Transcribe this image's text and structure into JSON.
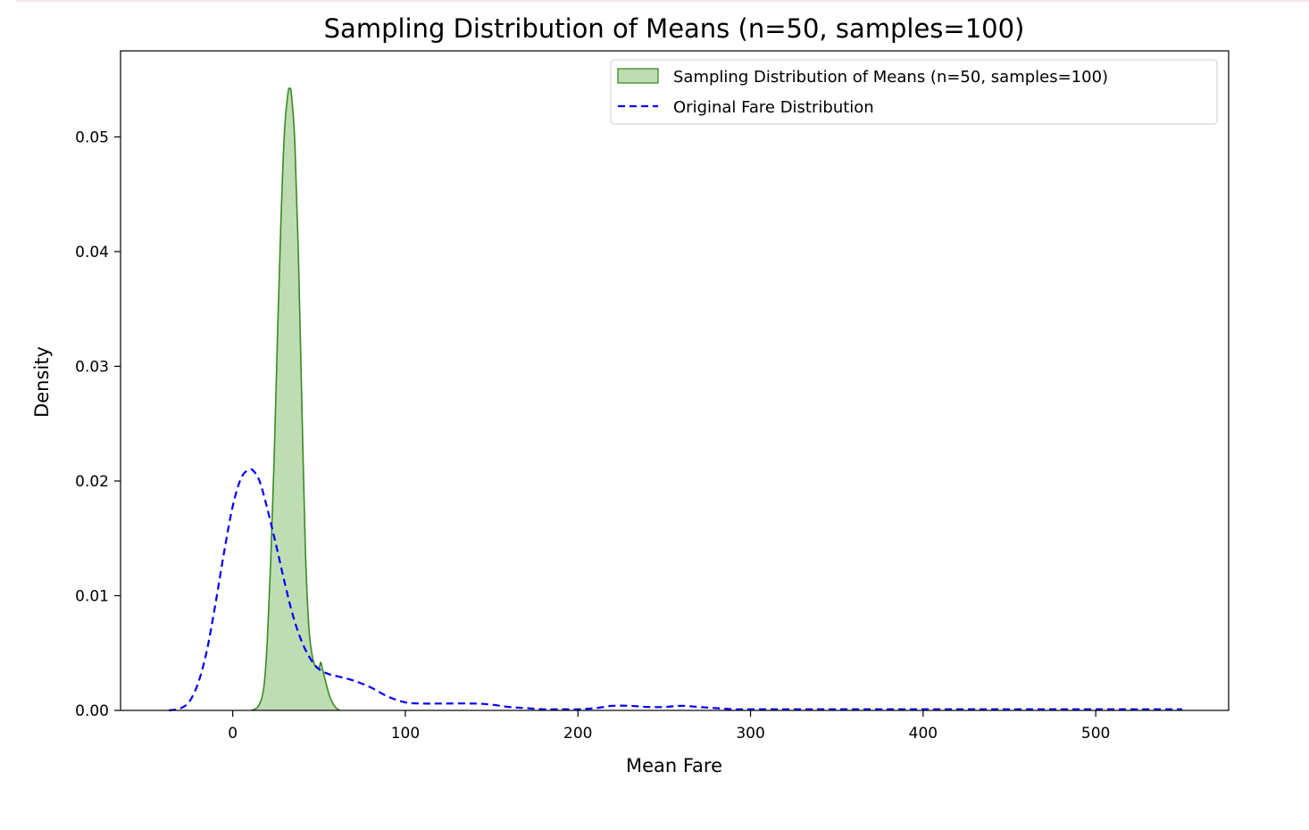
{
  "chart_data": {
    "type": "area",
    "title": "Sampling Distribution of Means (n=50, samples=100)",
    "xlabel": "Mean Fare",
    "ylabel": "Density",
    "xlim": [
      -65,
      577
    ],
    "ylim": [
      0,
      0.0575
    ],
    "xticks": [
      0,
      100,
      200,
      300,
      400,
      500
    ],
    "xtick_labels": [
      "0",
      "100",
      "200",
      "300",
      "400",
      "500"
    ],
    "yticks": [
      0,
      0.01,
      0.02,
      0.03,
      0.04,
      0.05
    ],
    "ytick_labels": [
      "0.00",
      "0.01",
      "0.02",
      "0.03",
      "0.04",
      "0.05"
    ],
    "grid": false,
    "legend": "top-right",
    "series": [
      {
        "name": "Sampling Distribution of Means (n=50, samples=100)",
        "style": "filled-kde",
        "color": "#3a8a25",
        "fill_color": "#bfddb3",
        "x": [
          11,
          15,
          18,
          20,
          22,
          24,
          26,
          28,
          30,
          32,
          33,
          34,
          36,
          38,
          40,
          42,
          44,
          46,
          48,
          50,
          51,
          52,
          54,
          56,
          58,
          60,
          62
        ],
        "y": [
          0,
          0.0004,
          0.002,
          0.006,
          0.013,
          0.022,
          0.033,
          0.043,
          0.0505,
          0.0538,
          0.0542,
          0.0537,
          0.0495,
          0.04,
          0.027,
          0.0145,
          0.0075,
          0.0048,
          0.0038,
          0.0037,
          0.0042,
          0.0036,
          0.0024,
          0.0013,
          0.0006,
          0.0002,
          0
        ]
      },
      {
        "name": "Original Fare Distribution",
        "style": "dashed-line",
        "color": "#0000ff",
        "x": [
          -37,
          -30,
          -25,
          -20,
          -15,
          -10,
          -5,
          0,
          5,
          10,
          13,
          16,
          20,
          25,
          30,
          35,
          40,
          45,
          50,
          55,
          60,
          70,
          80,
          90,
          100,
          110,
          120,
          140,
          150,
          160,
          170,
          180,
          190,
          200,
          210,
          220,
          230,
          240,
          250,
          260,
          270,
          280,
          290,
          300,
          350,
          400,
          450,
          500,
          550
        ],
        "y": [
          0,
          0.0002,
          0.0008,
          0.0024,
          0.0052,
          0.0093,
          0.0138,
          0.0178,
          0.0203,
          0.021,
          0.0207,
          0.0198,
          0.0176,
          0.0145,
          0.0112,
          0.0082,
          0.006,
          0.0045,
          0.0036,
          0.0032,
          0.003,
          0.0026,
          0.002,
          0.0012,
          0.0007,
          0.0006,
          0.0006,
          0.0006,
          0.0005,
          0.0003,
          0.0002,
          0.0001,
          0.0001,
          0.0001,
          0.0002,
          0.0004,
          0.0004,
          0.0003,
          0.0003,
          0.0004,
          0.0003,
          0.0002,
          0.0001,
          0.0001,
          0.0001,
          0.0001,
          0.0001,
          0.0001,
          0.0001
        ]
      }
    ]
  }
}
